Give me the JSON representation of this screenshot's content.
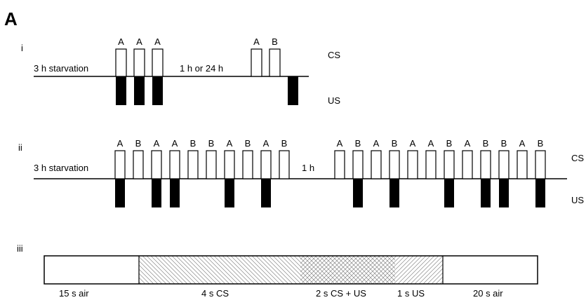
{
  "panel_label": "A",
  "protocols": [
    {
      "id": "i",
      "phase_labels": [
        "3 h starvation",
        "1 h or 24 h"
      ],
      "cs_label": "CS",
      "us_label": "US",
      "trial_letters": [
        "A",
        "A",
        "A",
        "A",
        "B"
      ]
    },
    {
      "id": "ii",
      "phase_labels": [
        "3 h starvation",
        "1 h"
      ],
      "cs_label": "CS",
      "us_label": "US",
      "trial_letters": [
        "A",
        "B",
        "A",
        "A",
        "B",
        "B",
        "A",
        "B",
        "A",
        "B",
        "A",
        "B",
        "A",
        "B",
        "A",
        "A",
        "B",
        "A",
        "B",
        "B",
        "A",
        "B"
      ]
    }
  ],
  "timeline": {
    "id": "iii",
    "segments": [
      "15 s air",
      "4 s CS",
      "2 s CS + US",
      "1 s US",
      "20 s air"
    ]
  }
}
